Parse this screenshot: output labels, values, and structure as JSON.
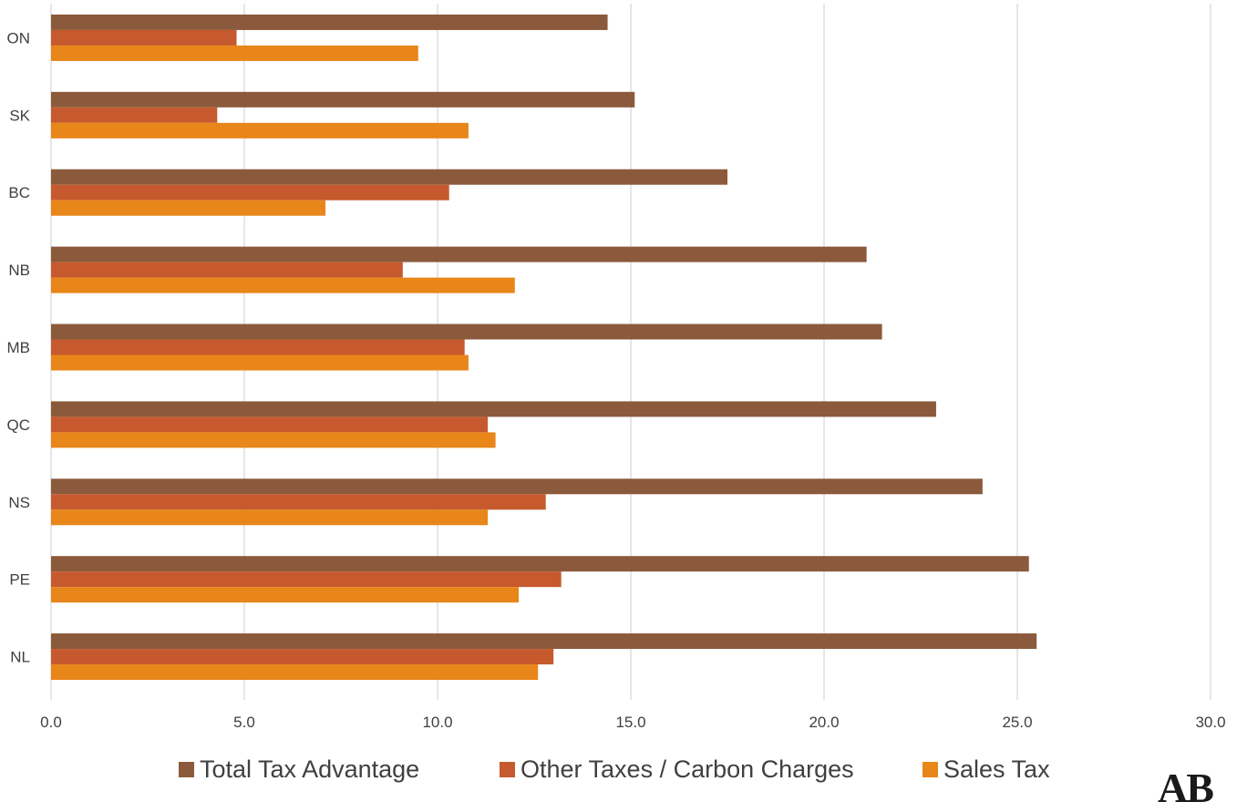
{
  "chart_data": {
    "type": "bar",
    "orientation": "horizontal",
    "categories": [
      "ON",
      "SK",
      "BC",
      "NB",
      "MB",
      "QC",
      "NS",
      "PE",
      "NL"
    ],
    "series": [
      {
        "name": "Total Tax Advantage",
        "color": "#8B5A3C",
        "values": [
          14.4,
          15.1,
          17.5,
          21.1,
          21.5,
          22.9,
          24.1,
          25.3,
          25.5
        ]
      },
      {
        "name": "Other Taxes / Carbon Charges",
        "color": "#C65A2E",
        "values": [
          4.8,
          4.3,
          10.3,
          9.1,
          10.7,
          11.3,
          12.8,
          13.2,
          13.0
        ]
      },
      {
        "name": "Sales Tax",
        "color": "#E8861A",
        "values": [
          9.5,
          10.8,
          7.1,
          12.0,
          10.8,
          11.5,
          11.3,
          12.1,
          12.6
        ]
      }
    ],
    "xlim": [
      0,
      30
    ],
    "xticks": [
      "0.0",
      "5.0",
      "10.0",
      "15.0",
      "20.0",
      "25.0",
      "30.0"
    ],
    "grid": true,
    "legend_position": "bottom",
    "title": "",
    "xlabel": "",
    "ylabel": ""
  },
  "legend": {
    "items": [
      {
        "label": "Total Tax Advantage",
        "color": "#8B5A3C"
      },
      {
        "label": "Other Taxes / Carbon Charges",
        "color": "#C65A2E"
      },
      {
        "label": "Sales Tax",
        "color": "#E8861A"
      }
    ]
  },
  "logo": {
    "text": "AB"
  }
}
